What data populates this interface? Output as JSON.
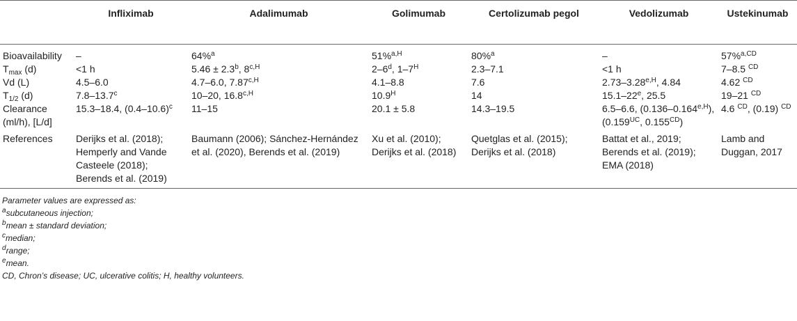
{
  "table": {
    "columns": [
      "Infliximab",
      "Adalimumab",
      "Golimumab",
      "Certolizumab pegol",
      "Vedolizumab",
      "Ustekinumab"
    ],
    "rows": [
      {
        "label": [
          "Bioavailability"
        ],
        "cells": [
          [
            "–"
          ],
          [
            "64%",
            {
              "sup": "a"
            }
          ],
          [
            "51%",
            {
              "sup": "a,H"
            }
          ],
          [
            "80%",
            {
              "sup": "a"
            }
          ],
          [
            "–"
          ],
          [
            "57%",
            {
              "sup": "a,CD"
            }
          ]
        ]
      },
      {
        "label": [
          "T",
          {
            "sub": "max"
          },
          " (d)"
        ],
        "cells": [
          [
            "<1 h"
          ],
          [
            "5.46 ± 2.3",
            {
              "sup": "b"
            },
            ", 8",
            {
              "sup": "c,H"
            }
          ],
          [
            "2–6",
            {
              "sup": "d"
            },
            ", 1–7",
            {
              "sup": "H"
            }
          ],
          [
            "2.3–7.1"
          ],
          [
            "<1 h"
          ],
          [
            "7–8.5 ",
            {
              "sup": "CD"
            }
          ]
        ]
      },
      {
        "label": [
          "Vd (L)"
        ],
        "cells": [
          [
            "4.5–6.0"
          ],
          [
            "4.7–6.0, 7.87",
            {
              "sup": "c,H"
            }
          ],
          [
            "4.1–8.8"
          ],
          [
            "7.6"
          ],
          [
            "2.73–3.28",
            {
              "sup": "e,H"
            },
            ", 4.84"
          ],
          [
            "4.62 ",
            {
              "sup": "CD"
            }
          ]
        ]
      },
      {
        "label": [
          "T",
          {
            "sub": "1/2"
          },
          " (d)"
        ],
        "cells": [
          [
            "7.8–13.7",
            {
              "sup": "c"
            }
          ],
          [
            "10–20, 16.8",
            {
              "sup": "c,H"
            }
          ],
          [
            "10.9",
            {
              "sup": "H"
            }
          ],
          [
            "14"
          ],
          [
            "15.1–22",
            {
              "sup": "e"
            },
            ", 25.5"
          ],
          [
            "19–21 ",
            {
              "sup": "CD"
            }
          ]
        ]
      },
      {
        "label": [
          "Clearance (ml/h), [L/d]"
        ],
        "cells": [
          [
            "15.3–18.4, (0.4–10.6)",
            {
              "sup": "c"
            }
          ],
          [
            "11–15"
          ],
          [
            "20.1 ± 5.8"
          ],
          [
            "14.3–19.5"
          ],
          [
            "6.5–6.6, (0.136–0.164",
            {
              "sup": "e,H"
            },
            "), (0.159",
            {
              "sup": "UC"
            },
            ", 0.155",
            {
              "sup": "CD"
            },
            ")"
          ],
          [
            "4.6 ",
            {
              "sup": "CD"
            },
            ", (0.19) ",
            {
              "sup": "CD"
            }
          ]
        ]
      },
      {
        "label": [
          "References"
        ],
        "cells": [
          [
            "Derijks et al. (2018); Hemperly and Vande Casteele (2018); Berends et al. (2019)"
          ],
          [
            "Baumann (2006); Sánchez-Hernández et al. (2020), Berends et al. (2019)"
          ],
          [
            "Xu et al. (2010); Derijks et al. (2018)"
          ],
          [
            "Quetglas et al. (2015); Derijks et al. (2018)"
          ],
          [
            "Battat et al., 2019; Berends et al. (2019); EMA (2018)"
          ],
          [
            "Lamb and Duggan, 2017"
          ]
        ]
      }
    ],
    "notes": [
      [
        "Parameter values are expressed as:"
      ],
      [
        {
          "sup": "a"
        },
        "subcutaneous injection;"
      ],
      [
        {
          "sup": "b"
        },
        "mean ± standard deviation;"
      ],
      [
        {
          "sup": "c"
        },
        "median;"
      ],
      [
        {
          "sup": "d"
        },
        "range;"
      ],
      [
        {
          "sup": "e"
        },
        "mean."
      ],
      [
        "CD, Chron’s disease; UC, ulcerative colitis; H, healthy volunteers."
      ]
    ]
  }
}
